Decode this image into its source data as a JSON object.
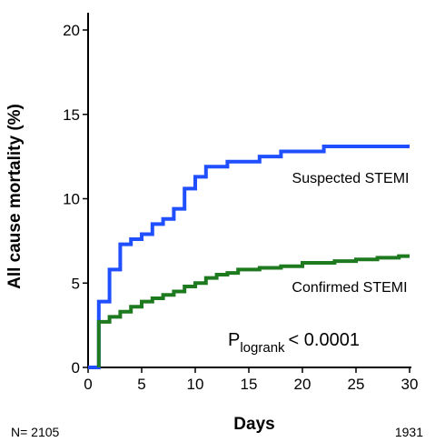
{
  "chart_data": {
    "type": "line",
    "step": true,
    "xlabel": "Days",
    "ylabel": "All cause mortality (%)",
    "xlim": [
      0,
      30
    ],
    "ylim": [
      0,
      20
    ],
    "xticks": [
      0,
      5,
      10,
      15,
      20,
      25,
      30
    ],
    "yticks": [
      0,
      5,
      10,
      15,
      20
    ],
    "grid": false,
    "series": [
      {
        "name": "Suspected STEMI",
        "color": "#1f4fff",
        "points": [
          [
            0,
            0
          ],
          [
            1,
            0
          ],
          [
            1,
            3.9
          ],
          [
            2,
            3.9
          ],
          [
            2,
            5.8
          ],
          [
            3,
            5.8
          ],
          [
            3,
            7.3
          ],
          [
            4,
            7.3
          ],
          [
            4,
            7.6
          ],
          [
            5,
            7.6
          ],
          [
            5,
            7.9
          ],
          [
            6,
            7.9
          ],
          [
            6,
            8.5
          ],
          [
            7,
            8.5
          ],
          [
            7,
            8.8
          ],
          [
            8,
            8.8
          ],
          [
            8,
            9.4
          ],
          [
            9,
            9.4
          ],
          [
            9,
            10.6
          ],
          [
            10,
            10.6
          ],
          [
            10,
            11.3
          ],
          [
            11,
            11.3
          ],
          [
            11,
            11.9
          ],
          [
            13,
            11.9
          ],
          [
            13,
            12.2
          ],
          [
            16,
            12.2
          ],
          [
            16,
            12.5
          ],
          [
            18,
            12.5
          ],
          [
            18,
            12.8
          ],
          [
            22,
            12.8
          ],
          [
            22,
            13.1
          ],
          [
            30,
            13.1
          ]
        ]
      },
      {
        "name": "Confirmed STEMI",
        "color": "#1e7a1e",
        "points": [
          [
            1,
            0
          ],
          [
            1,
            2.7
          ],
          [
            2,
            2.7
          ],
          [
            2,
            3.0
          ],
          [
            3,
            3.0
          ],
          [
            3,
            3.3
          ],
          [
            4,
            3.3
          ],
          [
            4,
            3.6
          ],
          [
            5,
            3.6
          ],
          [
            5,
            3.9
          ],
          [
            6,
            3.9
          ],
          [
            6,
            4.1
          ],
          [
            7,
            4.1
          ],
          [
            7,
            4.3
          ],
          [
            8,
            4.3
          ],
          [
            8,
            4.5
          ],
          [
            9,
            4.5
          ],
          [
            9,
            4.8
          ],
          [
            10,
            4.8
          ],
          [
            10,
            5.0
          ],
          [
            11,
            5.0
          ],
          [
            11,
            5.3
          ],
          [
            12,
            5.3
          ],
          [
            12,
            5.5
          ],
          [
            13,
            5.5
          ],
          [
            13,
            5.6
          ],
          [
            14,
            5.6
          ],
          [
            14,
            5.8
          ],
          [
            16,
            5.8
          ],
          [
            16,
            5.9
          ],
          [
            18,
            5.9
          ],
          [
            18,
            6.0
          ],
          [
            20,
            6.0
          ],
          [
            20,
            6.2
          ],
          [
            23,
            6.2
          ],
          [
            23,
            6.3
          ],
          [
            25,
            6.3
          ],
          [
            25,
            6.4
          ],
          [
            27,
            6.4
          ],
          [
            27,
            6.5
          ],
          [
            29,
            6.5
          ],
          [
            29,
            6.6
          ],
          [
            30,
            6.6
          ]
        ]
      }
    ],
    "annotation": {
      "p_main": "P",
      "p_sub": "logrank",
      "p_rest": "< 0.0001"
    },
    "n_at_risk": {
      "start": "N= 2105",
      "end": "1931"
    }
  }
}
